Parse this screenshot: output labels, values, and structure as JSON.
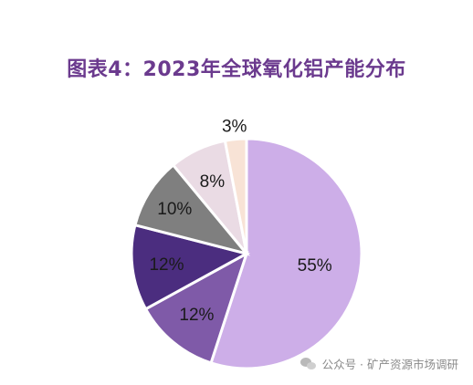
{
  "chart_data": {
    "type": "pie",
    "title": "图表4：2023年全球氧化铝产能分布",
    "start_angle_deg": 0,
    "direction": "clockwise",
    "slices": [
      {
        "label": "55%",
        "value": 55,
        "color": "#cdaee8"
      },
      {
        "label": "12%",
        "value": 12,
        "color": "#7f5aa8"
      },
      {
        "label": "12%",
        "value": 12,
        "color": "#4b2d7f"
      },
      {
        "label": "10%",
        "value": 10,
        "color": "#7f7f7f"
      },
      {
        "label": "8%",
        "value": 8,
        "color": "#eadbe4"
      },
      {
        "label": "3%",
        "value": 3,
        "color": "#f8e3d6"
      }
    ]
  },
  "watermark": {
    "icon": "wechat-icon",
    "text": "公众号 · 矿产资源市场调研"
  }
}
